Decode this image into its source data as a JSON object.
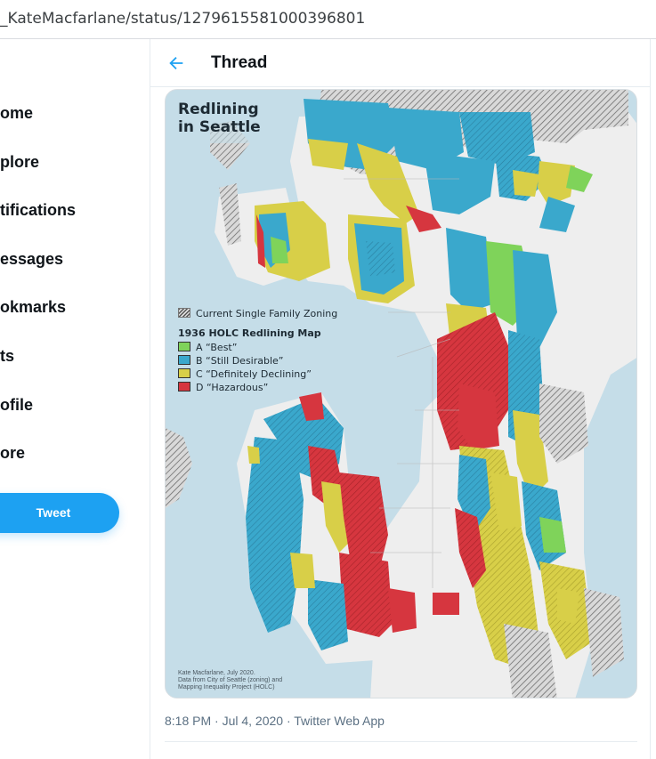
{
  "browser": {
    "url": "_KateMacfarlane/status/1279615581000396801"
  },
  "nav": {
    "items": [
      {
        "label": "ome"
      },
      {
        "label": "plore"
      },
      {
        "label": "tifications"
      },
      {
        "label": "essages"
      },
      {
        "label": "okmarks"
      },
      {
        "label": "ts"
      },
      {
        "label": "ofile"
      },
      {
        "label": "ore"
      }
    ],
    "tweet_button": "Tweet"
  },
  "header": {
    "title": "Thread"
  },
  "map": {
    "title_line1": "Redlining",
    "title_line2": "in Seattle",
    "legend": {
      "zoning_label": "Current Single Family Zoning",
      "heading": "1936 HOLC Redlining Map",
      "entries": [
        {
          "label": "A “Best”",
          "color": "#7fd35a"
        },
        {
          "label": "B “Still Desirable”",
          "color": "#3aa8cc"
        },
        {
          "label": "C “Definitely Declining”",
          "color": "#d8cf48"
        },
        {
          "label": "D “Hazardous”",
          "color": "#d6363f"
        }
      ]
    },
    "credit": {
      "line1": "Kate Macfarlane, July 2020.",
      "line2": "Data from City of Seattle (zoning) and",
      "line3": "Mapping Inequality Project (HOLC)"
    }
  },
  "tweet": {
    "timestamp": "8:18 PM · Jul 4, 2020 · Twitter Web App"
  },
  "colors": {
    "accent": "#1da1f2",
    "water": "#c5dde8",
    "land": "#eeeeee"
  }
}
